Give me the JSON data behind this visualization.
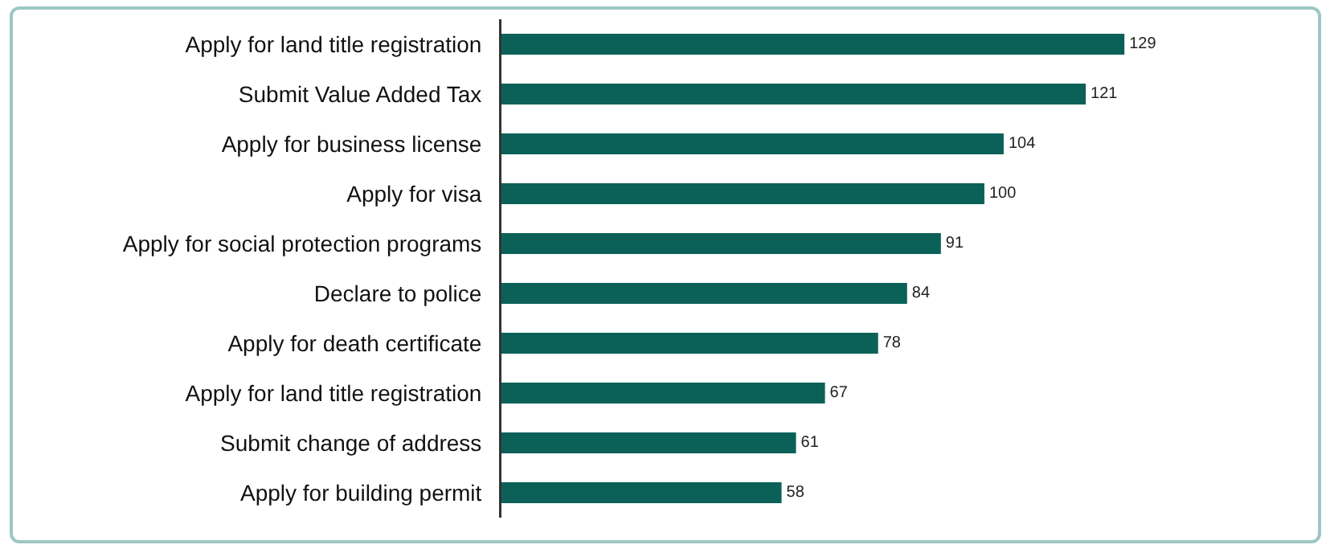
{
  "chart_data": {
    "type": "bar",
    "orientation": "horizontal",
    "categories": [
      "Apply for land title registration",
      "Submit Value Added Tax",
      "Apply for business license",
      "Apply for visa",
      "Apply for social protection programs",
      "Declare to police",
      "Apply for death certificate",
      "Apply for land title registration",
      "Submit change of address",
      "Apply for building permit"
    ],
    "values": [
      129,
      121,
      104,
      100,
      91,
      84,
      78,
      67,
      61,
      58
    ],
    "color": "#0b6158",
    "data_labels": true,
    "grid": false,
    "legend": false,
    "tick_labels": "y"
  }
}
